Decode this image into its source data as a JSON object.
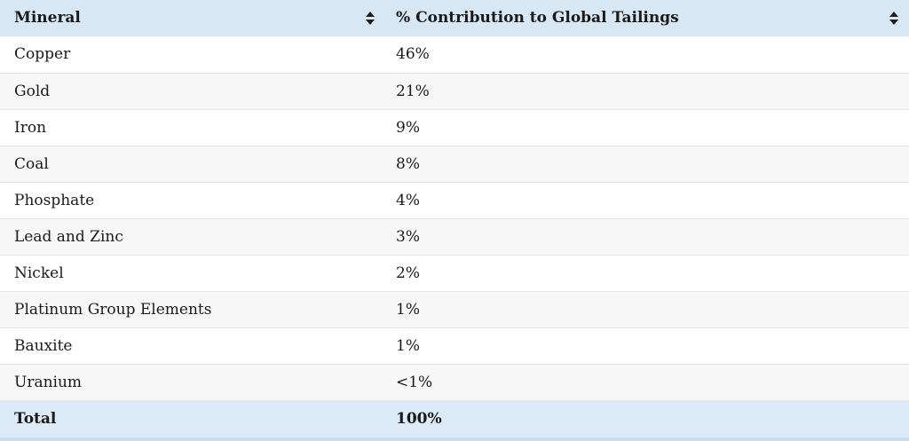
{
  "table": {
    "columns": [
      {
        "label": "Mineral"
      },
      {
        "label": "% Contribution to Global Tailings"
      }
    ],
    "rows": [
      {
        "mineral": "Copper",
        "value": "46%"
      },
      {
        "mineral": "Gold",
        "value": "21%"
      },
      {
        "mineral": "Iron",
        "value": "9%"
      },
      {
        "mineral": "Coal",
        "value": "8%"
      },
      {
        "mineral": "Phosphate",
        "value": "4%"
      },
      {
        "mineral": "Lead and Zinc",
        "value": "3%"
      },
      {
        "mineral": "Nickel",
        "value": "2%"
      },
      {
        "mineral": "Platinum Group Elements",
        "value": "1%"
      },
      {
        "mineral": "Bauxite",
        "value": "1%"
      },
      {
        "mineral": "Uranium",
        "value": "<1%"
      }
    ],
    "total": {
      "label": "Total",
      "value": "100%"
    }
  },
  "icons": {
    "sort": "sort-updown-icon"
  },
  "colors": {
    "header_bg": "#d8e7f4",
    "total_bg": "#dcebf7",
    "stripe_bg": "#f7f7f7",
    "row_bg": "#ffffff",
    "divider": "#e4e4e4",
    "bottom_strip": "#c9ddef",
    "text": "#1a1a1a",
    "sort_icon": "#1f1f1f"
  },
  "chart_data": {
    "type": "table",
    "title": "",
    "columns": [
      "Mineral",
      "% Contribution to Global Tailings"
    ],
    "rows": [
      [
        "Copper",
        "46%"
      ],
      [
        "Gold",
        "21%"
      ],
      [
        "Iron",
        "9%"
      ],
      [
        "Coal",
        "8%"
      ],
      [
        "Phosphate",
        "4%"
      ],
      [
        "Lead and Zinc",
        "3%"
      ],
      [
        "Nickel",
        "2%"
      ],
      [
        "Platinum Group Elements",
        "1%"
      ],
      [
        "Bauxite",
        "1%"
      ],
      [
        "Uranium",
        "<1%"
      ]
    ],
    "total_row": [
      "Total",
      "100%"
    ],
    "values_numeric_percent": [
      46,
      21,
      9,
      8,
      4,
      3,
      2,
      1,
      1,
      "<1"
    ],
    "layout": "striped rows, sortable column headers with up/down arrows, highlighted header and total rows"
  }
}
